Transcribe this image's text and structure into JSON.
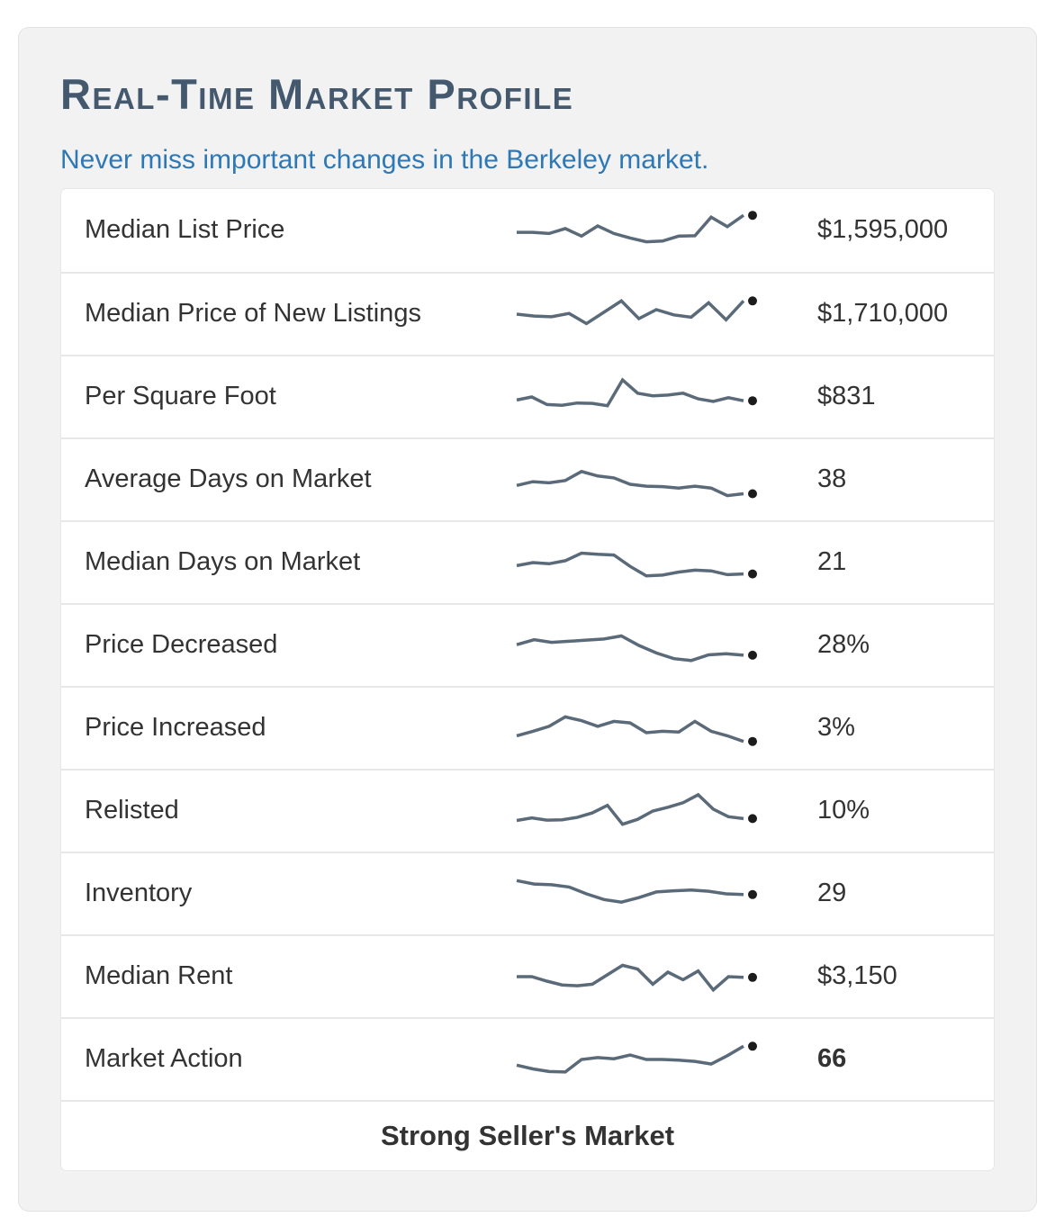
{
  "header": {
    "title": "Real-Time Market Profile",
    "subtitle": "Never miss important changes in the Berkeley market."
  },
  "chart_data": {
    "type": "table",
    "title": "Real-Time Market Profile",
    "subtitle": "Never miss important changes in the Berkeley market.",
    "columns": [
      "metric",
      "trend_sparkline",
      "current_value"
    ],
    "sparkline_scale": "normalized 0-1 (sparklines have no axis labels in image)",
    "rows": [
      {
        "metric": "Median List Price",
        "value": "$1,595,000",
        "emphasis": false,
        "spark": [
          0.45,
          0.45,
          0.42,
          0.55,
          0.35,
          0.62,
          0.42,
          0.3,
          0.2,
          0.22,
          0.35,
          0.36,
          0.85,
          0.6,
          0.9
        ]
      },
      {
        "metric": "Median Price of New Listings",
        "value": "$1,710,000",
        "emphasis": false,
        "spark": [
          0.5,
          0.45,
          0.43,
          0.52,
          0.25,
          0.55,
          0.85,
          0.38,
          0.62,
          0.48,
          0.42,
          0.8,
          0.35,
          0.85
        ]
      },
      {
        "metric": "Per Square Foot",
        "value": "$831",
        "emphasis": false,
        "spark": [
          0.42,
          0.5,
          0.3,
          0.28,
          0.34,
          0.33,
          0.27,
          0.95,
          0.6,
          0.53,
          0.55,
          0.6,
          0.45,
          0.38,
          0.48,
          0.4
        ]
      },
      {
        "metric": "Average Days on Market",
        "value": "38",
        "emphasis": false,
        "spark": [
          0.35,
          0.45,
          0.42,
          0.48,
          0.72,
          0.6,
          0.55,
          0.38,
          0.33,
          0.32,
          0.28,
          0.33,
          0.28,
          0.08,
          0.13
        ]
      },
      {
        "metric": "Median Days on Market",
        "value": "21",
        "emphasis": false,
        "spark": [
          0.42,
          0.5,
          0.47,
          0.55,
          0.75,
          0.72,
          0.7,
          0.4,
          0.15,
          0.17,
          0.25,
          0.3,
          0.28,
          0.18,
          0.2
        ]
      },
      {
        "metric": "Price Decreased",
        "value": "28%",
        "emphasis": false,
        "spark": [
          0.52,
          0.65,
          0.58,
          0.61,
          0.64,
          0.67,
          0.75,
          0.5,
          0.3,
          0.15,
          0.1,
          0.25,
          0.28,
          0.24
        ]
      },
      {
        "metric": "Price Increased",
        "value": "3%",
        "emphasis": false,
        "spark": [
          0.3,
          0.42,
          0.55,
          0.8,
          0.7,
          0.55,
          0.68,
          0.64,
          0.38,
          0.42,
          0.4,
          0.68,
          0.42,
          0.3,
          0.15
        ]
      },
      {
        "metric": "Relisted",
        "value": "10%",
        "emphasis": false,
        "spark": [
          0.25,
          0.32,
          0.26,
          0.27,
          0.33,
          0.45,
          0.65,
          0.15,
          0.28,
          0.5,
          0.6,
          0.72,
          0.93,
          0.55,
          0.35,
          0.3
        ]
      },
      {
        "metric": "Inventory",
        "value": "29",
        "emphasis": false,
        "spark": [
          0.85,
          0.76,
          0.74,
          0.68,
          0.5,
          0.35,
          0.28,
          0.4,
          0.55,
          0.58,
          0.6,
          0.57,
          0.5,
          0.48
        ]
      },
      {
        "metric": "Median Rent",
        "value": "$3,150",
        "emphasis": false,
        "spark": [
          0.5,
          0.5,
          0.38,
          0.28,
          0.26,
          0.3,
          0.55,
          0.8,
          0.7,
          0.3,
          0.62,
          0.42,
          0.65,
          0.15,
          0.5,
          0.48
        ]
      },
      {
        "metric": "Market Action",
        "value": "66",
        "emphasis": true,
        "spark": [
          0.35,
          0.25,
          0.18,
          0.17,
          0.5,
          0.55,
          0.52,
          0.62,
          0.5,
          0.5,
          0.48,
          0.45,
          0.38,
          0.6,
          0.85
        ]
      }
    ],
    "footer": "Strong Seller's Market"
  },
  "colors": {
    "title": "#44596e",
    "subtitle": "#2e78b5",
    "text": "#333333",
    "sparkline": "#5b6a79",
    "dot": "#1c1c1c",
    "card_bg": "#f2f2f2",
    "row_border": "#e7e7e7"
  }
}
